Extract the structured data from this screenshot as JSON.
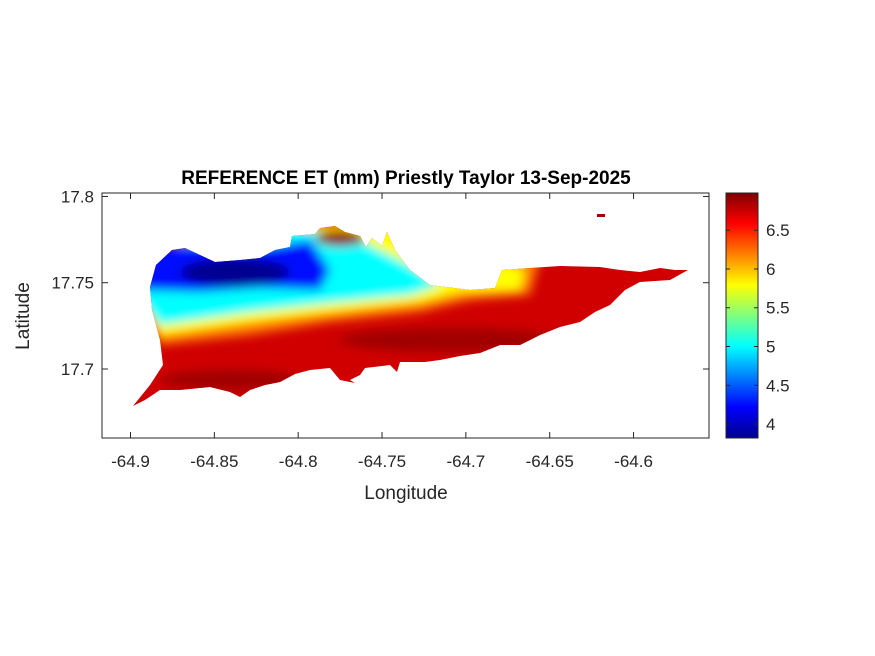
{
  "chart_data": {
    "type": "heatmap",
    "title": "REFERENCE ET (mm) Priestly Taylor 13-Sep-2025",
    "xlabel": "Longitude",
    "ylabel": "Latitude",
    "xlim": [
      -64.917,
      -64.555
    ],
    "ylim": [
      17.66,
      17.802
    ],
    "xticks": [
      -64.9,
      -64.85,
      -64.8,
      -64.75,
      -64.7,
      -64.65,
      -64.6
    ],
    "xtick_labels": [
      "-64.9",
      "-64.85",
      "-64.8",
      "-64.75",
      "-64.7",
      "-64.65",
      "-64.6"
    ],
    "yticks": [
      17.7,
      17.75,
      17.8
    ],
    "ytick_labels": [
      "17.7",
      "17.75",
      "17.8"
    ],
    "colorbar": {
      "colormap": "jet",
      "clim": [
        3.82,
        6.98
      ],
      "ticks": [
        4,
        4.5,
        5,
        5.5,
        6,
        6.5
      ],
      "tick_labels": [
        "4",
        "4.5",
        "5",
        "5.5",
        "6",
        "6.5"
      ]
    },
    "value_range": {
      "min": 3.85,
      "max": 6.95
    },
    "grid": false
  }
}
